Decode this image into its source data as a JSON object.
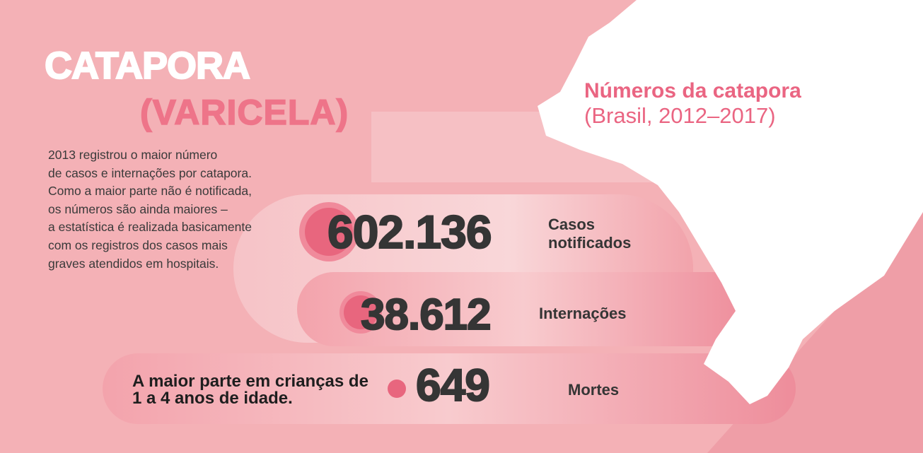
{
  "title": {
    "line1": "CATAPORA",
    "line2": "(VARICELA)"
  },
  "description": [
    "2013 registrou o maior número",
    "de casos e internações por catapora.",
    "Como a maior parte não é notificada,",
    "os números são ainda maiores –",
    "a estatística é realizada basicamente",
    "com os registros dos casos mais",
    "graves atendidos em hospitais."
  ],
  "panel": {
    "title": "Números da catapora",
    "subtitle": "(Brasil, 2012–2017)"
  },
  "stats": [
    {
      "value": "602.136",
      "label": "Casos notificados"
    },
    {
      "value": "38.612",
      "label": "Internações"
    },
    {
      "value": "649",
      "label": "Mortes"
    }
  ],
  "note": "A maior parte em crianças de 1 a 4 anos de idade."
}
